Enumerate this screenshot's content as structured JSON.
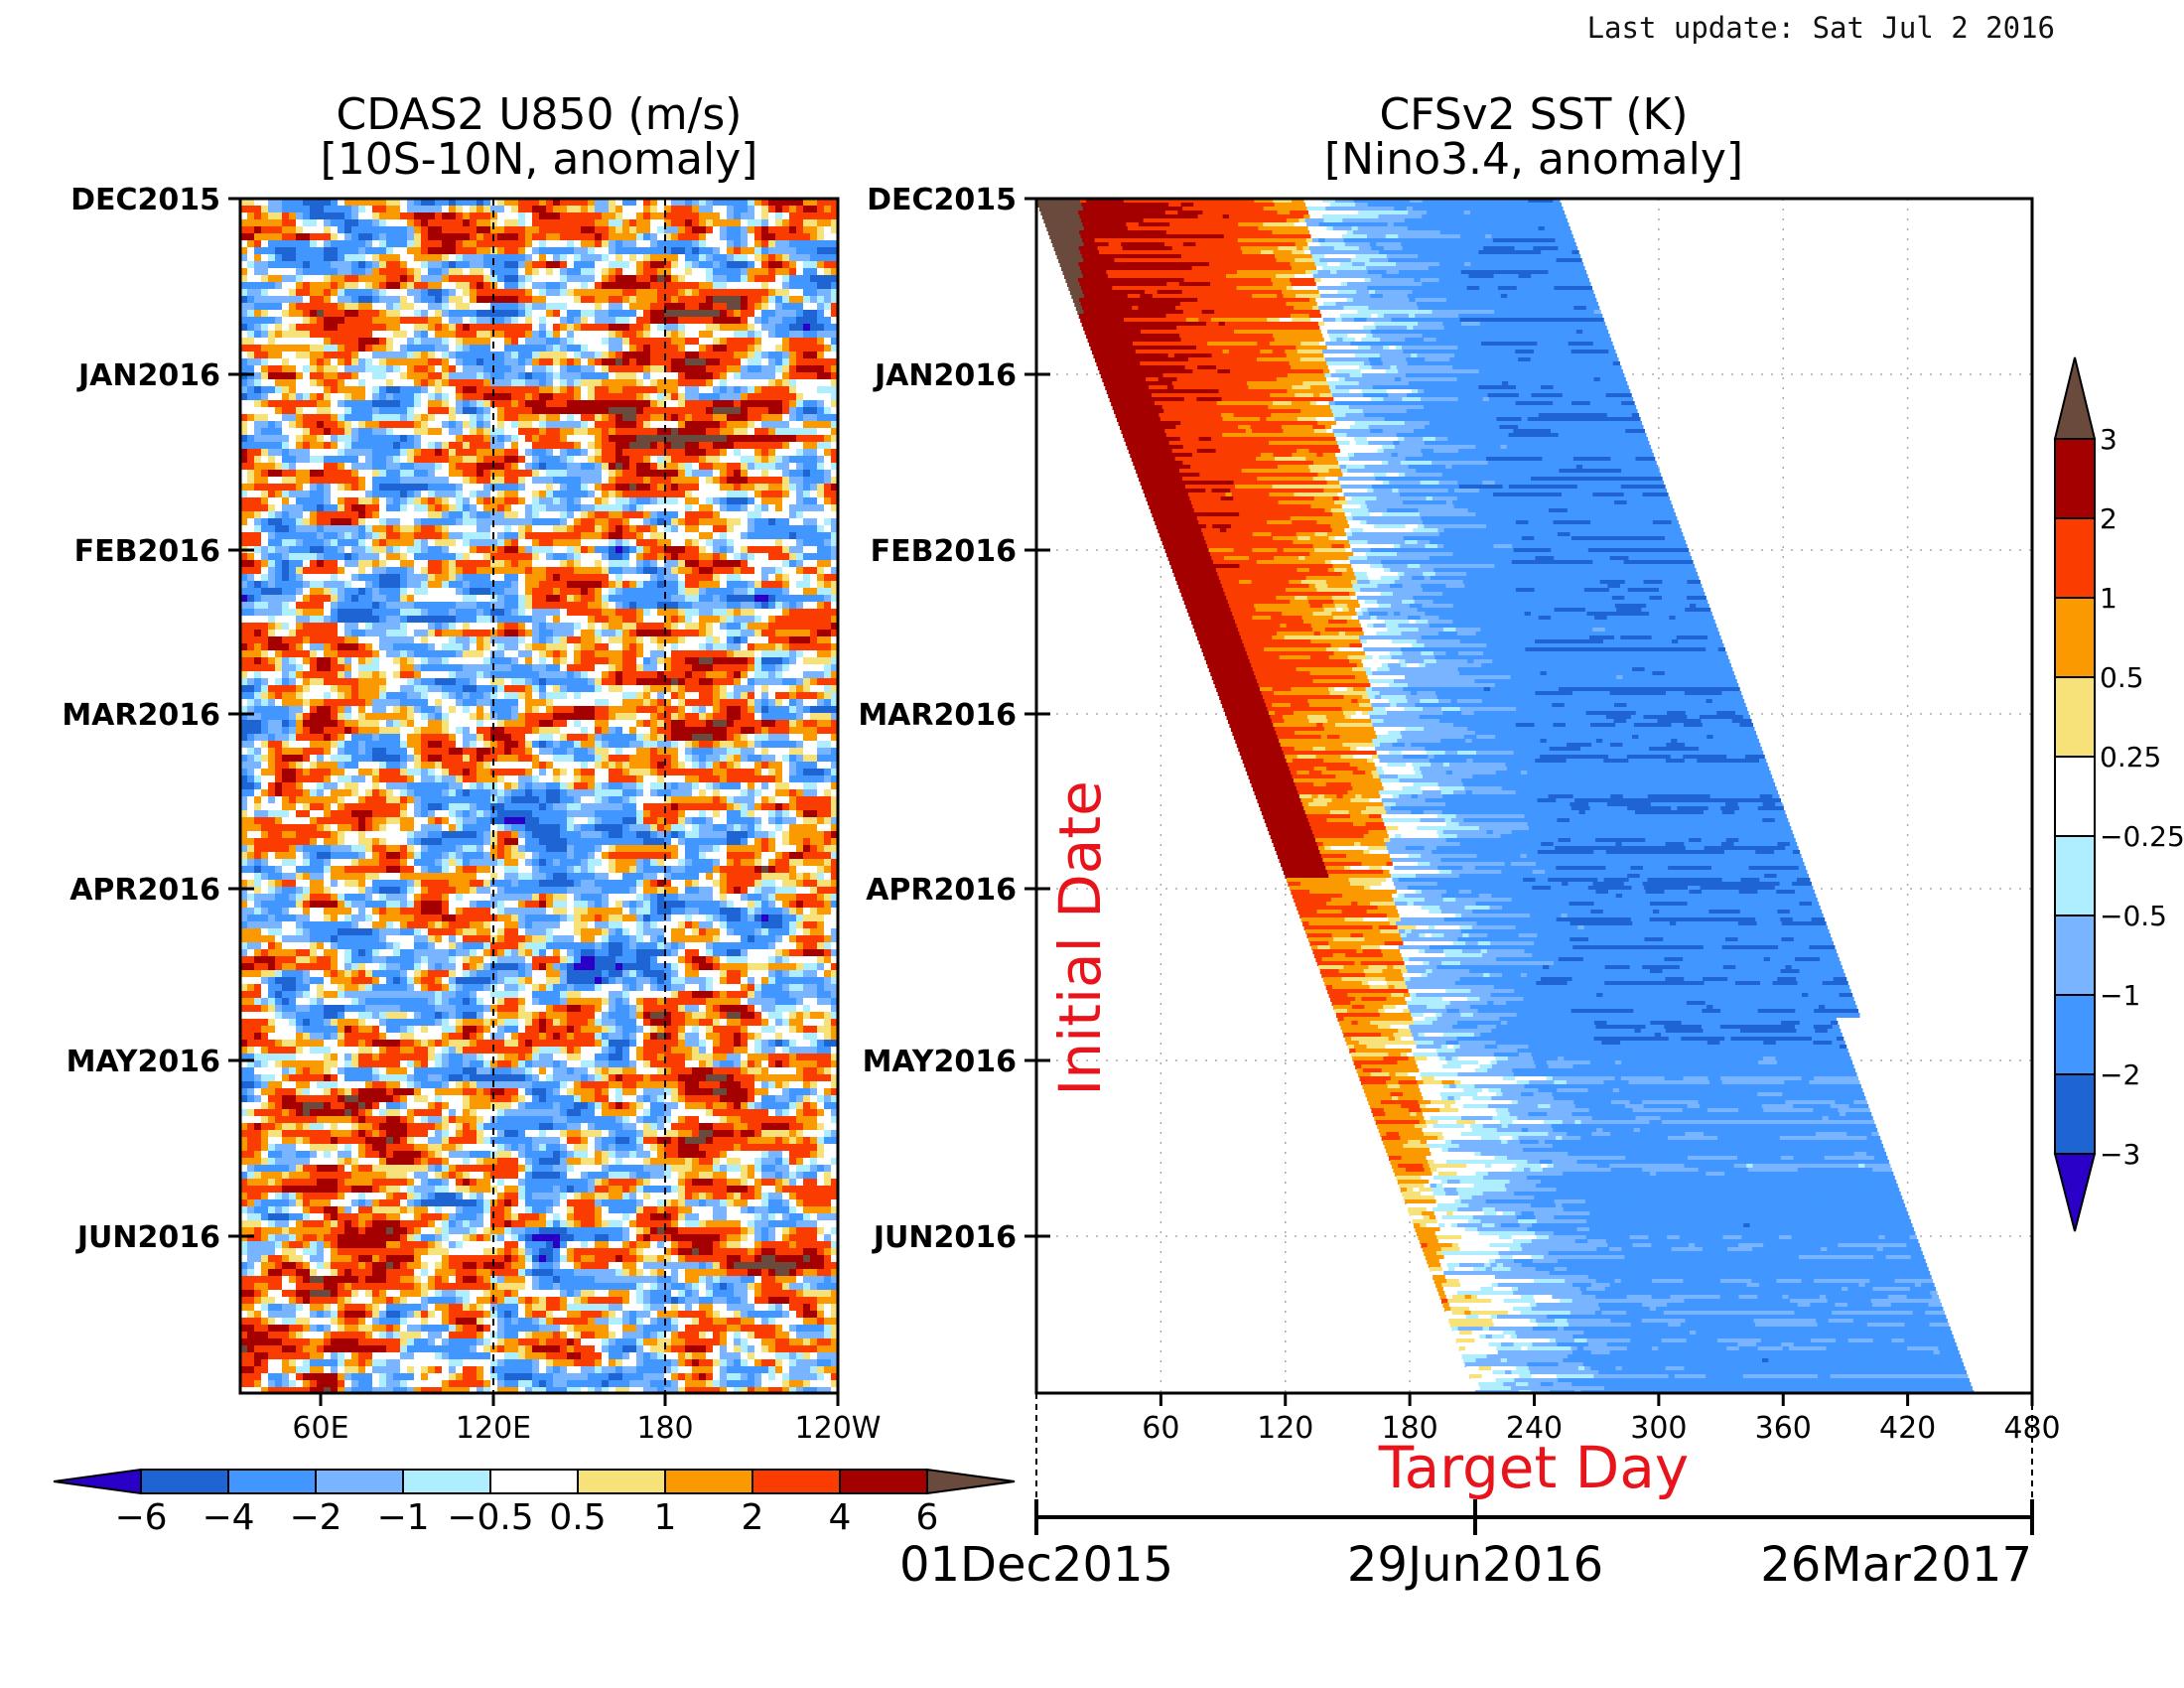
{
  "header": {
    "last_update": "Last update: Sat Jul 2 2016"
  },
  "colors": {
    "deep_blue": "#2a00c8",
    "blue1": "#1e64d2",
    "blue2": "#4196ff",
    "blue3": "#78b4ff",
    "light_cyan": "#afeeff",
    "white": "#ffffff",
    "light_yellow": "#f7e27a",
    "orange": "#fa9a00",
    "red_orange": "#fa3c00",
    "dark_red": "#a50000",
    "brown": "#6b4a3e",
    "label_red": "#e8141c"
  },
  "chart_data": [
    {
      "type": "heatmap",
      "title": "CDAS2 U850 (m/s)",
      "subtitle": "[10S-10N, anomaly]",
      "x_tick_labels": [
        "60E",
        "120E",
        "180",
        "120W"
      ],
      "y_tick_labels": [
        "DEC2015",
        "JAN2016",
        "FEB2016",
        "MAR2016",
        "APR2016",
        "MAY2016",
        "JUN2016"
      ],
      "reference_lines": [
        "120E",
        "180"
      ],
      "colorbar": {
        "labels": [
          "−6",
          "−4",
          "−2",
          "−1",
          "−0.5",
          "0.5",
          "1",
          "2",
          "4",
          "6"
        ],
        "levels": [
          -6,
          -4,
          -2,
          -1,
          -0.5,
          0.5,
          1,
          2,
          4,
          6
        ],
        "orientation": "horizontal"
      },
      "x_range": [
        "35E",
        "120W"
      ],
      "y_range": [
        "01Dec2015",
        "01Jul2016"
      ]
    },
    {
      "type": "heatmap",
      "title": "CFSv2 SST (K)",
      "subtitle": "[Nino3.4, anomaly]",
      "xlabel": "Target Day",
      "ylabel": "Initial Date",
      "x_ticks": [
        60,
        120,
        180,
        240,
        300,
        360,
        420,
        480
      ],
      "x_tick_labels": [
        "60",
        "120",
        "180",
        "240",
        "300",
        "360",
        "420",
        "480"
      ],
      "xlim": [
        0,
        480
      ],
      "y_tick_labels": [
        "DEC2015",
        "JAN2016",
        "FEB2016",
        "MAR2016",
        "APR2016",
        "MAY2016",
        "JUN2016"
      ],
      "date_axis": [
        "01Dec2015",
        "29Jun2016",
        "26Mar2017"
      ],
      "colorbar": {
        "labels": [
          "3",
          "2",
          "1",
          "0.5",
          "0.25",
          "−0.25",
          "−0.5",
          "−1",
          "−2",
          "−3"
        ],
        "levels": [
          3,
          2,
          1,
          0.5,
          0.25,
          -0.25,
          -0.5,
          -1,
          -2,
          -3
        ],
        "orientation": "vertical"
      },
      "grid": true
    }
  ]
}
